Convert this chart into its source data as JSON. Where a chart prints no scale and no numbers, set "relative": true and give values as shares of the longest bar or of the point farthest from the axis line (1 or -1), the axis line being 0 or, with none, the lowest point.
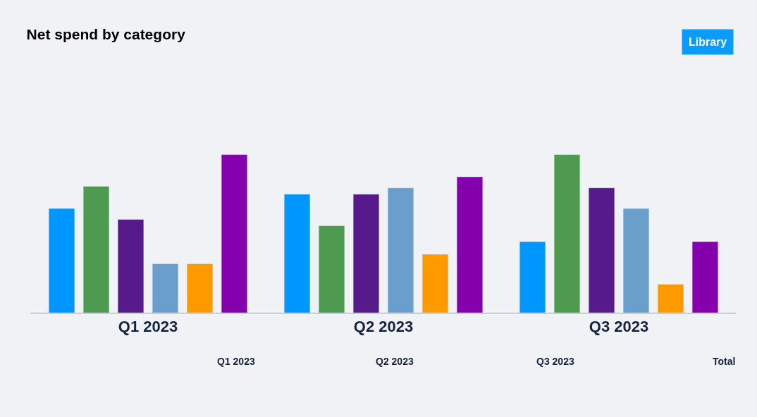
{
  "chart_data": {
    "type": "bar",
    "title": "Net spend by category",
    "relative": true,
    "categories": [
      "Q1 2023",
      "Q2 2023",
      "Q3 2023"
    ],
    "series": [
      {
        "color": "#0096ff",
        "values": [
          0.66,
          0.75,
          0.45
        ]
      },
      {
        "color": "#4e9a50",
        "values": [
          0.8,
          0.55,
          1.0
        ]
      },
      {
        "color": "#561a8b",
        "values": [
          0.59,
          0.75,
          0.79
        ]
      },
      {
        "color": "#6a9fcc",
        "values": [
          0.31,
          0.79,
          0.66
        ]
      },
      {
        "color": "#ff9900",
        "values": [
          0.31,
          0.37,
          0.18
        ]
      },
      {
        "color": "#8500ad",
        "values": [
          1.0,
          0.86,
          0.45
        ]
      }
    ],
    "annotations": [
      "Library",
      "Q1 2023",
      "Q2 2023",
      "Q3 2023",
      "Total"
    ]
  }
}
